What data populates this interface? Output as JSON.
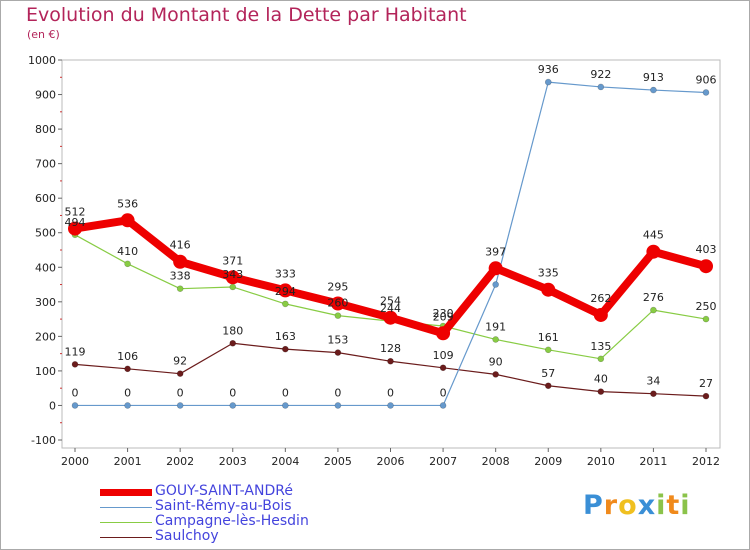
{
  "chart_data": {
    "type": "line",
    "title": "Evolution du Montant de la Dette par Habitant",
    "subtitle": "(en €)",
    "x": [
      "2000",
      "2001",
      "2002",
      "2003",
      "2004",
      "2005",
      "2006",
      "2007",
      "2008",
      "2009",
      "2010",
      "2011",
      "2012"
    ],
    "ylim": [
      -100,
      1000
    ],
    "yticks": [
      -100,
      0,
      100,
      200,
      300,
      400,
      500,
      600,
      700,
      800,
      900,
      1000
    ],
    "grid": false,
    "legend_position": "bottom-left",
    "series": [
      {
        "name": "GOUY-SAINT-ANDRé",
        "color": "#ee0000",
        "values": [
          512,
          536,
          416,
          371,
          333,
          295,
          254,
          209,
          397,
          335,
          262,
          445,
          403
        ]
      },
      {
        "name": "Saint-Rémy-au-Bois",
        "color": "#6699cc",
        "values": [
          0,
          0,
          0,
          0,
          0,
          0,
          0,
          0,
          350,
          936,
          922,
          913,
          906
        ]
      },
      {
        "name": "Campagne-lès-Hesdin",
        "color": "#88cc44",
        "values": [
          494,
          410,
          338,
          343,
          294,
          260,
          244,
          230,
          191,
          161,
          135,
          276,
          250
        ]
      },
      {
        "name": "Saulchoy",
        "color": "#6b1c1c",
        "values": [
          119,
          106,
          92,
          180,
          163,
          153,
          128,
          109,
          90,
          57,
          40,
          34,
          27
        ]
      }
    ],
    "data_labels": [
      {
        "series": 0,
        "labels": [
          "512",
          "536",
          "416",
          "371",
          "333",
          "295",
          "254",
          "209",
          "397",
          "335",
          "262",
          "445",
          "403"
        ]
      },
      {
        "series": 1,
        "labels": [
          "0",
          "0",
          "0",
          "0",
          "0",
          "0",
          "0",
          "0",
          "",
          "936",
          "922",
          "913",
          "906"
        ]
      },
      {
        "series": 2,
        "labels": [
          "494",
          "410",
          "338",
          "343",
          "294",
          "260",
          "244",
          "230",
          "191",
          "161",
          "135",
          "276",
          "250"
        ]
      },
      {
        "series": 3,
        "labels": [
          "119",
          "106",
          "92",
          "180",
          "163",
          "153",
          "128",
          "109",
          "90",
          "57",
          "40",
          "34",
          "27"
        ]
      }
    ]
  },
  "logo": {
    "text": "Proxiti",
    "letters": [
      "P",
      "r",
      "o",
      "x",
      "i",
      "t",
      "i"
    ],
    "colors": [
      "#3a8fd6",
      "#f08a1c",
      "#f0c020",
      "#3a8fd6",
      "#8bc34a",
      "#f08a1c",
      "#8bc34a"
    ]
  }
}
